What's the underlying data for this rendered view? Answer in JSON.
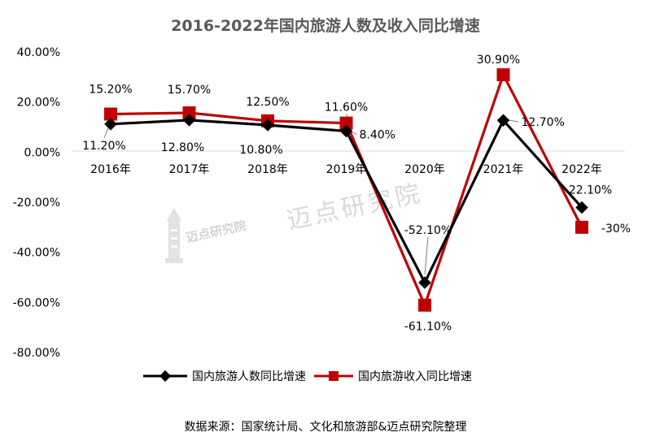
{
  "chart_data": {
    "type": "line",
    "title": "2016-2022年国内旅游人数及收入同比增速",
    "categories": [
      "2016年",
      "2017年",
      "2018年",
      "2019年",
      "2020年",
      "2021年",
      "2022年"
    ],
    "y_ticks": [
      "40.00%",
      "20.00%",
      "0.00%",
      "-20.00%",
      "-40.00%",
      "-60.00%",
      "-80.00%"
    ],
    "ylim": [
      -80,
      40
    ],
    "y_unit": "%",
    "grid": false,
    "legend_position": "bottom",
    "series": [
      {
        "name": "国内旅游人数同比增速",
        "color": "#000000",
        "marker": "diamond",
        "values": [
          11.2,
          12.8,
          10.8,
          8.4,
          -52.1,
          12.7,
          -22.1
        ],
        "labels": [
          "11.20%",
          "12.80%",
          "10.80%",
          "8.40%",
          "-52.10%",
          "12.70%",
          "-22.10%"
        ]
      },
      {
        "name": "国内旅游收入同比增速",
        "color": "#c00000",
        "marker": "square",
        "values": [
          15.2,
          15.7,
          12.5,
          11.6,
          -61.1,
          30.9,
          -30
        ],
        "labels": [
          "15.20%",
          "15.70%",
          "12.50%",
          "11.60%",
          "-61.10%",
          "30.90%",
          "-30%"
        ]
      }
    ]
  },
  "source": "数据来源：国家统计局、文化和旅游部&迈点研究院整理",
  "watermark": {
    "text": "迈点研究院",
    "logo_text": "迈点研究院"
  }
}
